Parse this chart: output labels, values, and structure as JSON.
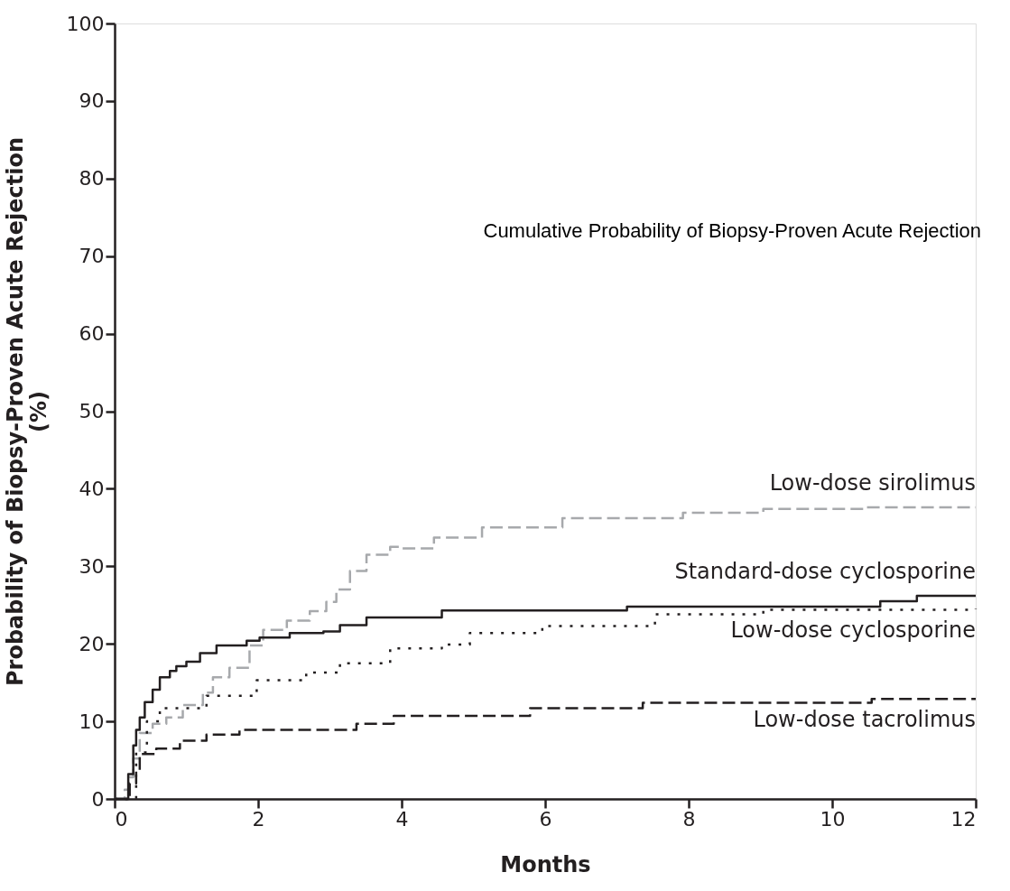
{
  "chart_data": {
    "type": "step",
    "xlabel": "Months",
    "ylabel": "Probability of Biopsy-Proven Acute Rejection (%)",
    "annotations": [
      "Cumulative Probability of Biopsy-Proven Acute Rejection"
    ],
    "xlim": [
      0,
      12
    ],
    "xticks": [
      0,
      2,
      4,
      6,
      8,
      10,
      12
    ],
    "ylim": [
      0,
      100
    ],
    "yticks": [
      0,
      10,
      20,
      30,
      40,
      50,
      60,
      70,
      80,
      90,
      100
    ],
    "grid": false,
    "legend": false,
    "marker": "none",
    "series": [
      {
        "name": "Low-dose sirolimus",
        "color": "#a7a9ac",
        "line_style": "dashed",
        "x": [
          0,
          0.02,
          0.14,
          0.21,
          0.26,
          0.35,
          0.53,
          0.72,
          0.95,
          1.23,
          1.37,
          1.6,
          1.88,
          2.07,
          2.4,
          2.72,
          2.95,
          3.09,
          3.28,
          3.51,
          3.84,
          4.0,
          4.45,
          5.12,
          6.24,
          7.92,
          9.04,
          10.44,
          12
        ],
        "values": [
          0,
          0,
          1.2,
          2.8,
          5.2,
          8.5,
          9.7,
          10.5,
          12.1,
          13.7,
          15.7,
          16.9,
          19.8,
          21.8,
          23,
          24.2,
          25.4,
          27,
          29.4,
          31.5,
          32.5,
          32.3,
          33.7,
          35,
          36.2,
          36.9,
          37.4,
          37.6,
          37.6
        ]
      },
      {
        "name": "Standard-dose cyclosporine",
        "color": "#231f20",
        "line_style": "solid",
        "x": [
          0,
          0.07,
          0.19,
          0.26,
          0.3,
          0.35,
          0.42,
          0.53,
          0.63,
          0.77,
          0.86,
          1.0,
          1.19,
          1.42,
          1.84,
          2.02,
          2.44,
          2.91,
          3.14,
          3.51,
          4.56,
          7.14,
          10.67,
          11.18,
          12
        ],
        "values": [
          0,
          0,
          3.2,
          6.9,
          8.9,
          10.5,
          12.5,
          14.1,
          15.7,
          16.5,
          17.1,
          17.7,
          18.8,
          19.8,
          20.4,
          20.8,
          21.4,
          21.6,
          22.4,
          23.4,
          24.3,
          24.8,
          25.5,
          26.2,
          26.2
        ]
      },
      {
        "name": "Low-dose cyclosporine",
        "color": "#231f20",
        "line_style": "dotted",
        "x": [
          0,
          0.07,
          0.3,
          0.45,
          0.63,
          1.28,
          1.98,
          2.67,
          3.14,
          3.84,
          4.56,
          4.95,
          5.96,
          7.53,
          9.04,
          12
        ],
        "values": [
          0,
          0,
          6,
          10,
          11.7,
          13.3,
          15.3,
          16.3,
          17.5,
          19.4,
          19.9,
          21.4,
          22.3,
          23.8,
          24.4,
          24.5
        ]
      },
      {
        "name": "Low-dose tacrolimus",
        "color": "#231f20",
        "line_style": "dashed",
        "x": [
          0,
          0.07,
          0.21,
          0.3,
          0.35,
          0.58,
          0.91,
          1.28,
          1.74,
          2.91,
          3.37,
          3.89,
          5.79,
          7.36,
          10.55,
          12
        ],
        "values": [
          0,
          0,
          2,
          3.6,
          5.8,
          6.5,
          7.5,
          8.3,
          8.9,
          8.9,
          9.7,
          10.7,
          11.7,
          12.4,
          12.9,
          12.9
        ]
      }
    ]
  }
}
